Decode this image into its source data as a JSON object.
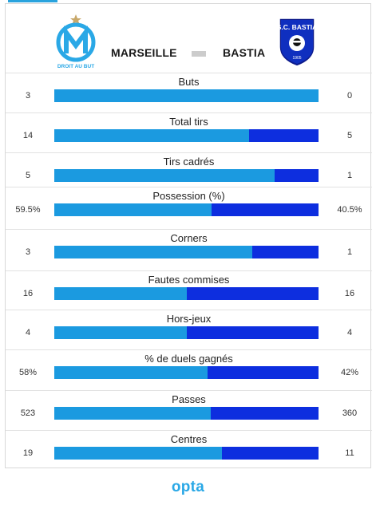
{
  "teams": {
    "home": "MARSEILLE",
    "away": "BASTIA",
    "home_crest_text": "DROIT AU BUT",
    "away_crest_text": "S.C. BASTIA",
    "away_crest_year": "1905"
  },
  "colors": {
    "home_bar": "#1b9ae0",
    "away_bar": "#0d2edf",
    "brand": "#2aa8e6"
  },
  "stats": [
    {
      "label": "Buts",
      "home": "3",
      "away": "0",
      "home_share": 1.0
    },
    {
      "label": "Total tirs",
      "home": "14",
      "away": "5",
      "home_share": 0.737
    },
    {
      "label": "Tirs cadrés",
      "home": "5",
      "away": "1",
      "home_share": 0.833
    },
    {
      "label": "Possession (%)",
      "home": "59.5%",
      "away": "40.5%",
      "home_share": 0.595
    },
    {
      "label": "Corners",
      "home": "3",
      "away": "1",
      "home_share": 0.75
    },
    {
      "label": "Fautes commises",
      "home": "16",
      "away": "16",
      "home_share": 0.5
    },
    {
      "label": "Hors-jeux",
      "home": "4",
      "away": "4",
      "home_share": 0.5
    },
    {
      "label": "% de duels gagnés",
      "home": "58%",
      "away": "42%",
      "home_share": 0.58
    },
    {
      "label": "Passes",
      "home": "523",
      "away": "360",
      "home_share": 0.592
    },
    {
      "label": "Centres",
      "home": "19",
      "away": "11",
      "home_share": 0.633
    }
  ],
  "footer": {
    "brand": "opta"
  }
}
